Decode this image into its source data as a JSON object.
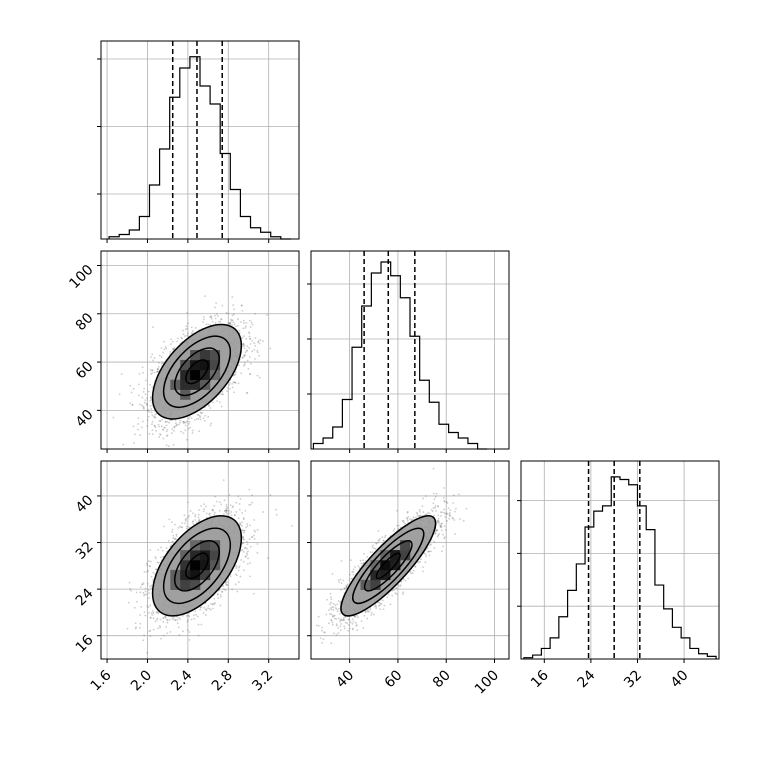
{
  "chart_data": {
    "type": "corner",
    "title": "",
    "grid": true,
    "n_params": 3,
    "params": [
      {
        "id": "p0",
        "xlim": [
          1.54,
          3.5
        ],
        "ylim": [
          28,
          106
        ],
        "ticks": [
          1.6,
          2.0,
          2.4,
          2.8,
          3.2
        ],
        "tick_labels": [
          "1.6",
          "2.0",
          "2.4",
          "2.8",
          "3.2"
        ],
        "quantiles": [
          2.25,
          2.49,
          2.74
        ],
        "hist": {
          "bin_edges": [
            1.62,
            1.72,
            1.82,
            1.92,
            2.02,
            2.12,
            2.22,
            2.32,
            2.42,
            2.52,
            2.62,
            2.72,
            2.82,
            2.92,
            3.02,
            3.12,
            3.22,
            3.32,
            3.42
          ],
          "counts": [
            1,
            2,
            4,
            10,
            24,
            40,
            63,
            76,
            81,
            68,
            60,
            38,
            22,
            10,
            5,
            3,
            1,
            0
          ]
        },
        "hist_ymax": 88,
        "hist_ticks": [
          20,
          50,
          80
        ]
      },
      {
        "id": "p1",
        "xlim": [
          24,
          106
        ],
        "ylim": [
          24,
          106
        ],
        "ticks": [
          40,
          60,
          80,
          100
        ],
        "tick_labels": [
          "40",
          "60",
          "80",
          "100"
        ],
        "quantiles": [
          46,
          56,
          67
        ],
        "hist": {
          "bin_edges": [
            25,
            29,
            33,
            37,
            41,
            45,
            49,
            53,
            57,
            61,
            65,
            69,
            73,
            77,
            81,
            85,
            89,
            93,
            97
          ],
          "counts": [
            2,
            4,
            8,
            18,
            37,
            52,
            64,
            68,
            63,
            55,
            41,
            25,
            17,
            9,
            6,
            4,
            2,
            0
          ]
        },
        "hist_ymax": 72,
        "hist_ticks": [
          20,
          40,
          60
        ]
      },
      {
        "id": "p2",
        "xlim": [
          12,
          46
        ],
        "ylim": [
          12,
          46
        ],
        "ticks": [
          16,
          24,
          32,
          40
        ],
        "tick_labels": [
          "16",
          "24",
          "32",
          "40"
        ],
        "quantiles": [
          23.6,
          28,
          32.4
        ],
        "hist": {
          "bin_edges": [
            12.5,
            14,
            15.5,
            17,
            18.5,
            20,
            21.5,
            23,
            24.5,
            26,
            27.5,
            29,
            30.5,
            32,
            33.5,
            35,
            36.5,
            38,
            39.5,
            41,
            42.5,
            44,
            45.5
          ],
          "counts": [
            0.5,
            1.5,
            4,
            8,
            16,
            26,
            36,
            50,
            56,
            58,
            69,
            68,
            66,
            58,
            49,
            28,
            19,
            12,
            8,
            4,
            2,
            1
          ]
        },
        "hist_ymax": 75,
        "hist_ticks": [
          20,
          40,
          60
        ]
      }
    ],
    "pairs": [
      {
        "x": "p0",
        "y": "p1",
        "mean": [
          2.49,
          56
        ],
        "sd": [
          0.22,
          9.8
        ],
        "rho": 0.55
      },
      {
        "x": "p0",
        "y": "p2",
        "mean": [
          2.49,
          28
        ],
        "sd": [
          0.22,
          4.3
        ],
        "rho": 0.55
      },
      {
        "x": "p1",
        "y": "p2",
        "mean": [
          56,
          28
        ],
        "sd": [
          9.8,
          4.3
        ],
        "rho": 0.85
      }
    ]
  }
}
